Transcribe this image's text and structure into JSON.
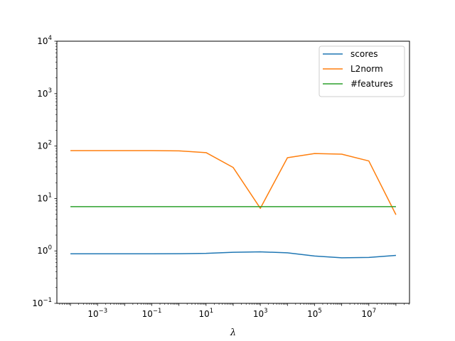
{
  "chart_data": {
    "type": "line",
    "xscale": "log",
    "yscale": "log",
    "xlabel": "λ",
    "ylabel": "",
    "title": "",
    "xlim": [
      3.16e-05,
      316000000
    ],
    "ylim": [
      0.1,
      10000
    ],
    "x": [
      0.0001,
      0.001,
      0.01,
      0.1,
      1,
      10,
      100,
      1000,
      10000,
      100000,
      1000000,
      10000000,
      100000000
    ],
    "x_ticks": [
      {
        "value": 0.001,
        "base": "10",
        "exp": "−3"
      },
      {
        "value": 0.1,
        "base": "10",
        "exp": "−1"
      },
      {
        "value": 10,
        "base": "10",
        "exp": "1"
      },
      {
        "value": 1000,
        "base": "10",
        "exp": "3"
      },
      {
        "value": 100000,
        "base": "10",
        "exp": "5"
      },
      {
        "value": 10000000,
        "base": "10",
        "exp": "7"
      }
    ],
    "y_ticks": [
      {
        "value": 0.1,
        "base": "10",
        "exp": "−1"
      },
      {
        "value": 1,
        "base": "10",
        "exp": "0"
      },
      {
        "value": 10,
        "base": "10",
        "exp": "1"
      },
      {
        "value": 100,
        "base": "10",
        "exp": "2"
      },
      {
        "value": 1000,
        "base": "10",
        "exp": "3"
      },
      {
        "value": 10000,
        "base": "10",
        "exp": "4"
      }
    ],
    "legend_position": "top-right",
    "grid": false,
    "series": [
      {
        "name": "scores",
        "color": "#1f77b4",
        "values": [
          0.88,
          0.88,
          0.88,
          0.88,
          0.885,
          0.9,
          0.94,
          0.96,
          0.92,
          0.8,
          0.74,
          0.75,
          0.82
        ]
      },
      {
        "name": "L2norm",
        "color": "#ff7f0e",
        "values": [
          82,
          82,
          82,
          82,
          81,
          75,
          39,
          6.5,
          60,
          72,
          70,
          52,
          4.9
        ]
      },
      {
        "name": "#features",
        "color": "#2ca02c",
        "values": [
          7,
          7,
          7,
          7,
          7,
          7,
          7,
          7,
          7,
          7,
          7,
          7,
          7
        ]
      }
    ]
  }
}
